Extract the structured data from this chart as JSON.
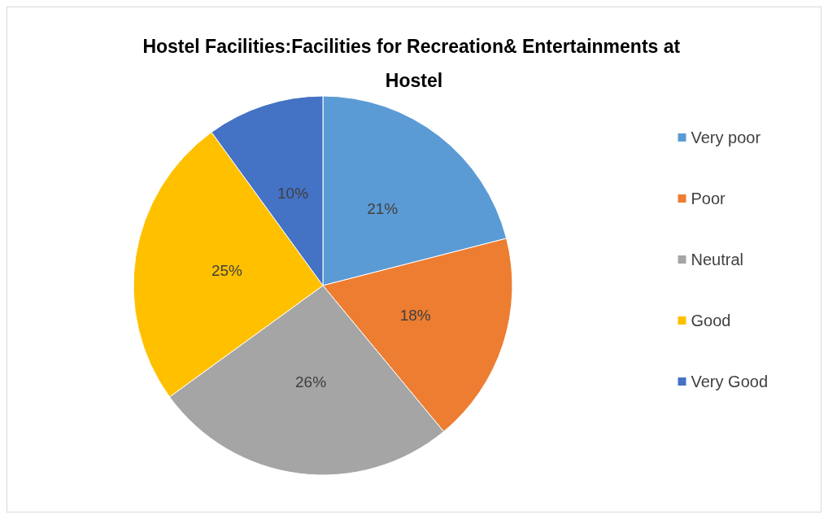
{
  "chart_data": {
    "type": "pie",
    "title": "Hostel Facilities:Facilities for Recreation& Entertainments at Hostel",
    "categories": [
      "Very poor",
      "Poor",
      "Neutral",
      "Good",
      "Very Good"
    ],
    "values": [
      21,
      18,
      26,
      25,
      10
    ],
    "colors": [
      "#5b9bd5",
      "#ed7d31",
      "#a5a5a5",
      "#ffc000",
      "#4472c4"
    ],
    "value_labels": [
      "21%",
      "18%",
      "26%",
      "25%",
      "10%"
    ],
    "legend": "right"
  }
}
